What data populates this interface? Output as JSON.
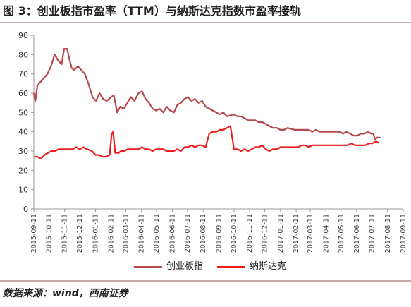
{
  "title": "图 3：创业板指市盈率（TTM）与纳斯达克指数市盈率接轨",
  "source": "数据来源：wind，西南证券",
  "colors": {
    "chinext": "#b5484c",
    "nasdaq": "#ee1c1c",
    "axis": "#999999",
    "rule": "#c9a9a9"
  },
  "chart_data": {
    "type": "line",
    "title": "",
    "xlabel": "",
    "ylabel": "",
    "ylim": [
      0,
      90
    ],
    "yticks": [
      "0",
      "10",
      "20",
      "30",
      "40",
      "50",
      "60",
      "70",
      "80",
      "90"
    ],
    "xticks": [
      "2015-09-11",
      "2015-10-11",
      "2015-11-11",
      "2015-12-11",
      "2016-01-11",
      "2016-02-11",
      "2016-03-11",
      "2016-04-11",
      "2016-05-11",
      "2016-06-11",
      "2016-07-11",
      "2016-08-11",
      "2016-09-11",
      "2016-10-11",
      "2016-11-11",
      "2016-12-11",
      "2017-01-11",
      "2017-02-11",
      "2017-03-11",
      "2017-04-11",
      "2017-05-11",
      "2017-06-11",
      "2017-07-11",
      "2017-08-11",
      "2017-09-11"
    ],
    "grid": false,
    "legend": "bottom",
    "series": [
      {
        "name": "创业板指",
        "x": [
          "2015-09-11",
          "2015-09-14",
          "2015-09-18",
          "2015-09-25",
          "2015-10-08",
          "2015-10-15",
          "2015-10-22",
          "2015-10-29",
          "2015-11-05",
          "2015-11-10",
          "2015-11-16",
          "2015-11-20",
          "2015-11-25",
          "2015-11-30",
          "2015-12-07",
          "2015-12-14",
          "2015-12-21",
          "2015-12-28",
          "2016-01-05",
          "2016-01-12",
          "2016-01-19",
          "2016-01-26",
          "2016-02-02",
          "2016-02-16",
          "2016-02-23",
          "2016-02-29",
          "2016-03-07",
          "2016-03-14",
          "2016-03-21",
          "2016-03-28",
          "2016-04-05",
          "2016-04-12",
          "2016-04-19",
          "2016-04-26",
          "2016-05-03",
          "2016-05-10",
          "2016-05-17",
          "2016-05-24",
          "2016-05-31",
          "2016-06-07",
          "2016-06-14",
          "2016-06-21",
          "2016-06-28",
          "2016-07-05",
          "2016-07-12",
          "2016-07-19",
          "2016-07-26",
          "2016-08-02",
          "2016-08-09",
          "2016-08-16",
          "2016-08-23",
          "2016-08-30",
          "2016-09-06",
          "2016-09-13",
          "2016-09-20",
          "2016-09-27",
          "2016-10-11",
          "2016-10-18",
          "2016-10-25",
          "2016-11-01",
          "2016-11-08",
          "2016-11-15",
          "2016-11-22",
          "2016-11-29",
          "2016-12-06",
          "2016-12-13",
          "2016-12-20",
          "2016-12-27",
          "2017-01-04",
          "2017-01-11",
          "2017-01-18",
          "2017-01-25",
          "2017-02-08",
          "2017-02-15",
          "2017-02-22",
          "2017-03-01",
          "2017-03-08",
          "2017-03-15",
          "2017-03-22",
          "2017-03-29",
          "2017-04-07",
          "2017-04-14",
          "2017-04-21",
          "2017-04-28",
          "2017-05-08",
          "2017-05-15",
          "2017-05-22",
          "2017-05-29",
          "2017-06-05",
          "2017-06-12",
          "2017-06-19",
          "2017-06-26",
          "2017-07-03",
          "2017-07-10",
          "2017-07-14",
          "2017-07-17",
          "2017-07-21",
          "2017-07-28"
        ],
        "values": [
          60,
          56,
          64,
          66,
          70,
          74,
          80,
          77,
          75,
          83,
          83,
          78,
          73,
          72,
          74,
          72,
          70,
          65,
          58,
          56,
          60,
          57,
          56,
          59,
          50,
          53,
          52,
          55,
          58,
          56,
          60,
          61,
          57,
          55,
          52,
          51,
          52,
          50,
          53,
          51,
          50,
          54,
          55,
          57,
          58,
          56,
          57,
          55,
          56,
          53,
          52,
          51,
          50,
          49,
          50,
          48,
          49,
          48,
          48,
          47,
          46,
          46,
          46,
          45,
          45,
          44,
          43,
          42,
          42,
          41,
          41,
          42,
          41,
          41,
          41,
          41,
          41,
          40,
          41,
          40,
          40,
          40,
          40,
          40,
          40,
          39,
          40,
          39,
          38,
          38,
          39,
          39,
          40,
          39,
          39,
          36,
          37,
          37
        ]
      },
      {
        "name": "纳斯达克",
        "x": [
          "2015-09-11",
          "2015-09-18",
          "2015-09-25",
          "2015-10-02",
          "2015-10-09",
          "2015-10-16",
          "2015-10-23",
          "2015-10-30",
          "2015-11-06",
          "2015-11-13",
          "2015-11-20",
          "2015-11-27",
          "2015-12-04",
          "2015-12-11",
          "2015-12-18",
          "2015-12-25",
          "2016-01-04",
          "2016-01-11",
          "2016-01-18",
          "2016-01-25",
          "2016-02-01",
          "2016-02-08",
          "2016-02-12",
          "2016-02-15",
          "2016-02-19",
          "2016-02-26",
          "2016-03-01",
          "2016-03-08",
          "2016-03-15",
          "2016-03-22",
          "2016-03-29",
          "2016-04-05",
          "2016-04-12",
          "2016-04-19",
          "2016-04-26",
          "2016-05-03",
          "2016-05-10",
          "2016-05-17",
          "2016-05-24",
          "2016-05-31",
          "2016-06-07",
          "2016-06-14",
          "2016-06-21",
          "2016-06-28",
          "2016-07-05",
          "2016-07-12",
          "2016-07-19",
          "2016-07-26",
          "2016-08-02",
          "2016-08-09",
          "2016-08-16",
          "2016-08-23",
          "2016-08-30",
          "2016-09-06",
          "2016-09-13",
          "2016-09-20",
          "2016-09-27",
          "2016-10-04",
          "2016-10-11",
          "2016-10-18",
          "2016-10-25",
          "2016-11-01",
          "2016-11-08",
          "2016-11-15",
          "2016-11-22",
          "2016-11-29",
          "2016-12-06",
          "2016-12-13",
          "2016-12-20",
          "2016-12-27",
          "2017-01-04",
          "2017-01-11",
          "2017-01-18",
          "2017-01-25",
          "2017-02-01",
          "2017-02-08",
          "2017-02-15",
          "2017-02-22",
          "2017-03-01",
          "2017-03-08",
          "2017-03-15",
          "2017-03-22",
          "2017-03-29",
          "2017-04-05",
          "2017-04-12",
          "2017-04-19",
          "2017-04-26",
          "2017-05-03",
          "2017-05-10",
          "2017-05-17",
          "2017-05-24",
          "2017-05-31",
          "2017-06-07",
          "2017-06-14",
          "2017-06-21",
          "2017-06-28",
          "2017-07-05",
          "2017-07-12",
          "2017-07-19",
          "2017-07-26"
        ],
        "values": [
          27,
          27,
          26,
          28,
          29,
          30,
          30,
          31,
          31,
          31,
          31,
          31,
          32,
          31,
          32,
          31,
          30,
          28,
          28,
          27,
          27,
          28,
          39,
          40,
          29,
          29,
          30,
          30,
          31,
          31,
          31,
          31,
          32,
          31,
          31,
          30,
          31,
          31,
          31,
          30,
          30,
          30,
          31,
          30,
          32,
          32,
          33,
          32,
          33,
          33,
          32,
          39,
          40,
          40,
          41,
          41,
          42,
          43,
          31,
          31,
          30,
          31,
          30,
          31,
          32,
          32,
          33,
          31,
          30,
          31,
          31,
          32,
          32,
          32,
          32,
          32,
          32,
          33,
          33,
          32,
          33,
          33,
          33,
          33,
          33,
          33,
          33,
          33,
          33,
          33,
          33,
          34,
          33,
          33,
          33,
          33,
          34,
          34,
          35,
          34
        ]
      }
    ]
  }
}
